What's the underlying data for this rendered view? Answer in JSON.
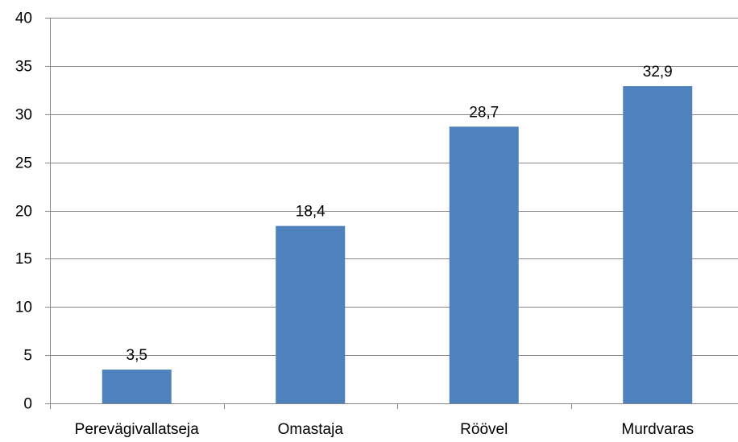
{
  "chart_data": {
    "type": "bar",
    "categories": [
      "Perevägivallatseja",
      "Omastaja",
      "Röövel",
      "Murdvaras"
    ],
    "values": [
      3.5,
      18.4,
      28.7,
      32.9
    ],
    "value_labels": [
      "3,5",
      "18,4",
      "28,7",
      "32,9"
    ],
    "ylim": [
      0,
      40
    ],
    "y_ticks": [
      0,
      5,
      10,
      15,
      20,
      25,
      30,
      35,
      40
    ],
    "y_tick_labels": [
      "0",
      "5",
      "10",
      "15",
      "20",
      "25",
      "30",
      "35",
      "40"
    ],
    "grid": true,
    "legend": "none",
    "bar_color": "#4f81bd",
    "grid_color": "#868686",
    "title": "",
    "xlabel": "",
    "ylabel": ""
  }
}
